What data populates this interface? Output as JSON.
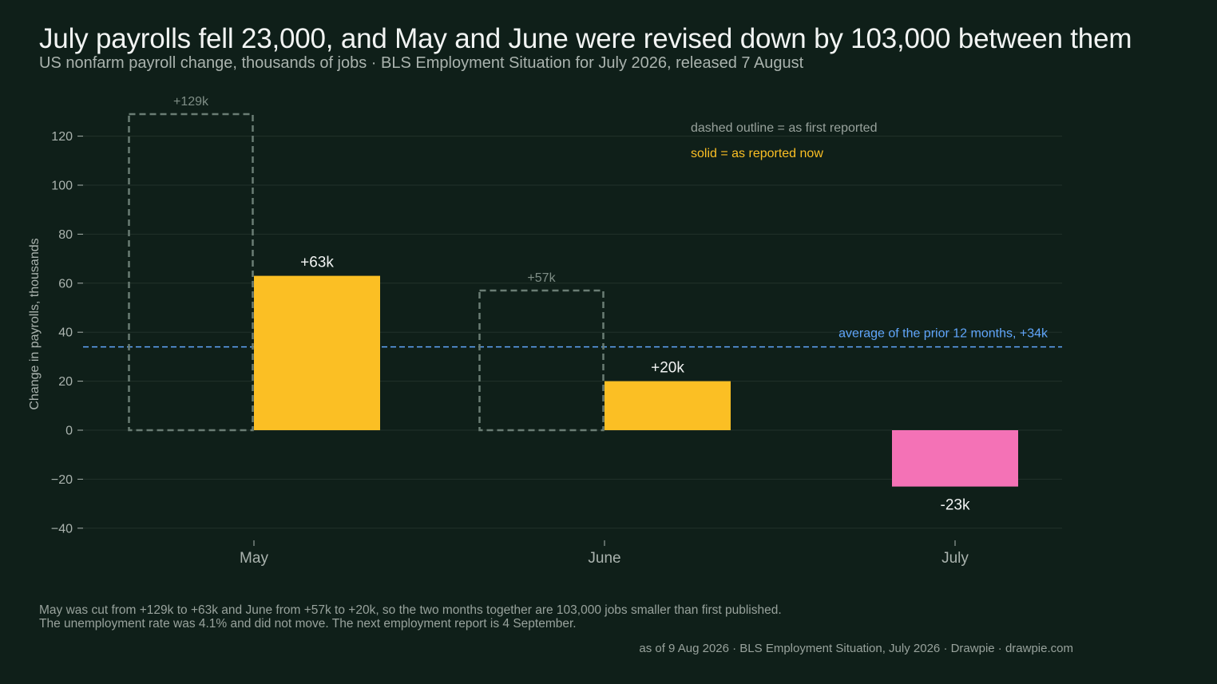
{
  "title": "July payrolls fell 23,000, and May and June were revised down by 103,000 between them",
  "subtitle": "US nonfarm payroll change, thousands of jobs · BLS Employment Situation for July 2026, released 7 August",
  "chart_data": {
    "type": "bar",
    "categories": [
      "May",
      "June",
      "July"
    ],
    "series": [
      {
        "key": "first_reported",
        "values": [
          129,
          57,
          null
        ],
        "value_labels": [
          "+129k",
          "+57k",
          null
        ],
        "style": "dashed-outline",
        "color": "#6a7d74"
      },
      {
        "key": "reported_now",
        "values": [
          63,
          20,
          -23
        ],
        "value_labels": [
          "+63k",
          "+20k",
          "-23k"
        ],
        "style": "solid",
        "colors": [
          "#fbbf24",
          "#fbbf24",
          "#f472b6"
        ]
      }
    ],
    "reference_line": {
      "value": 34,
      "label": "average of the prior 12 months, +34k",
      "color": "#60a5fa",
      "style": "dashed"
    },
    "legend": [
      {
        "text": "dashed outline = as first reported",
        "color": "#98a29c"
      },
      {
        "text": "solid = as reported now",
        "color": "#fbbf24"
      }
    ],
    "legend_position": "top-right",
    "ylabel": "Change in payrolls, thousands",
    "xlabel": "",
    "ylim": [
      -40,
      130
    ],
    "yticks": [
      -40,
      -20,
      0,
      20,
      40,
      60,
      80,
      100,
      120
    ],
    "ytick_labels": [
      "−40",
      "−20",
      "0",
      "20",
      "40",
      "60",
      "80",
      "100",
      "120"
    ],
    "grid": true
  },
  "footnote": {
    "line1": "May was cut from +129k to +63k and June from +57k to +20k, so the two months together are 103,000 jobs smaller than first published.",
    "line2": "The unemployment rate was 4.1% and did not move. The next employment report is 4 September."
  },
  "credit": "as of 9 Aug 2026  ·  BLS Employment Situation, July 2026  ·  Drawpie · drawpie.com",
  "colors": {
    "background": "#0f1f19",
    "grid": "#22322b",
    "axis_text": "#aab3ae"
  }
}
